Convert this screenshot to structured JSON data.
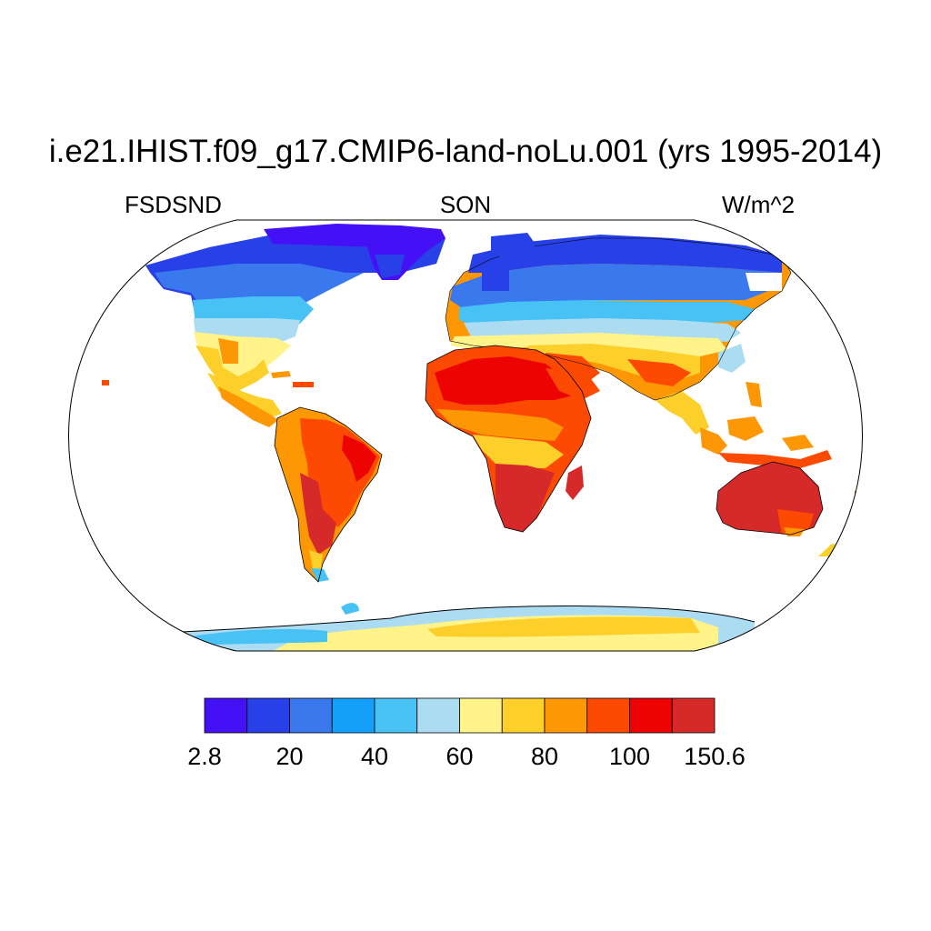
{
  "title": "i.e21.IHIST.f09_g17.CMIP6-land-noLu.001 (yrs 1995-2014)",
  "left_label": "FSDSND",
  "center_label": "SON",
  "right_label": "W/m^2",
  "colorbar": {
    "colors": [
      "#4410F5",
      "#2840E8",
      "#3A78EE",
      "#14A0FA",
      "#48C2F5",
      "#ACDCF2",
      "#FFF38A",
      "#FDCF2A",
      "#FE9704",
      "#FD4A03",
      "#EE0303",
      "#D62A2A"
    ],
    "tick_labels": [
      "2.8",
      "20",
      "40",
      "60",
      "80",
      "100",
      "150.6"
    ]
  }
}
